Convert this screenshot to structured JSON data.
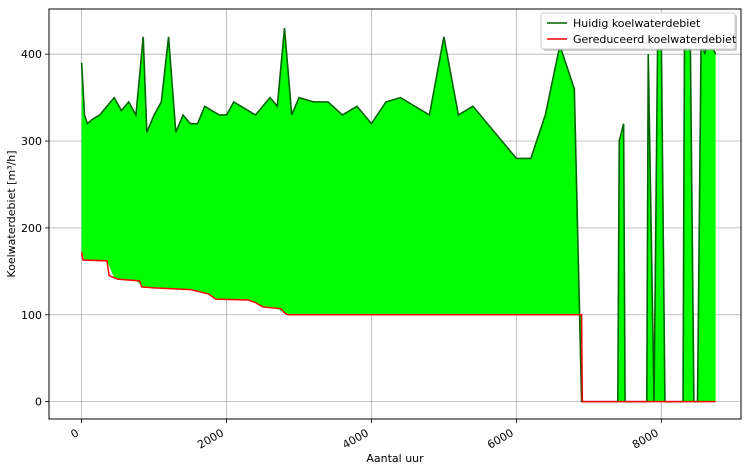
{
  "chart_data": {
    "type": "line",
    "title": "",
    "xlabel": "Aantal uur",
    "ylabel": "Koelwaterdebiet [m³/h]",
    "xlim": [
      -450,
      9100
    ],
    "ylim": [
      -20,
      452
    ],
    "xticks": [
      0,
      2000,
      4000,
      6000,
      8000
    ],
    "yticks": [
      0,
      100,
      200,
      300,
      400
    ],
    "grid": true,
    "legend_position": "top-right",
    "fill_between_color": "#00ff00",
    "series": [
      {
        "name": "Huidig koelwaterdebiet",
        "color": "#006400",
        "x": [
          0,
          40,
          80,
          150,
          250,
          350,
          450,
          550,
          650,
          750,
          850,
          900,
          1000,
          1100,
          1200,
          1300,
          1400,
          1500,
          1600,
          1700,
          1800,
          1900,
          2000,
          2100,
          2200,
          2300,
          2400,
          2500,
          2600,
          2700,
          2800,
          2900,
          3000,
          3200,
          3400,
          3600,
          3800,
          4000,
          4200,
          4400,
          4600,
          4800,
          5000,
          5200,
          5400,
          5600,
          5800,
          6000,
          6200,
          6400,
          6600,
          6800,
          6900,
          6920,
          7400,
          7420,
          7480,
          7500,
          7800,
          7820,
          7900,
          7950,
          8000,
          8050,
          8300,
          8320,
          8400,
          8450,
          8500,
          8550,
          8600,
          8650,
          8750
        ],
        "y": [
          390,
          330,
          320,
          325,
          330,
          340,
          350,
          335,
          345,
          330,
          420,
          310,
          330,
          345,
          420,
          310,
          330,
          320,
          320,
          340,
          335,
          330,
          330,
          345,
          340,
          335,
          330,
          340,
          350,
          340,
          430,
          330,
          350,
          345,
          345,
          330,
          340,
          320,
          345,
          350,
          340,
          330,
          420,
          330,
          340,
          320,
          300,
          280,
          280,
          330,
          410,
          360,
          0,
          0,
          0,
          300,
          320,
          0,
          0,
          400,
          0,
          420,
          420,
          0,
          0,
          420,
          420,
          0,
          0,
          420,
          400,
          420,
          400
        ]
      },
      {
        "name": "Gereduceerd koelwaterdebiet",
        "color": "#ff0000",
        "x": [
          0,
          20,
          350,
          380,
          500,
          800,
          830,
          1000,
          1500,
          1600,
          1750,
          1850,
          2300,
          2400,
          2500,
          2750,
          2800,
          2850,
          6900,
          6910,
          8750
        ],
        "y": [
          172,
          163,
          162,
          145,
          141,
          139,
          132,
          131,
          129,
          127,
          124,
          118,
          117,
          114,
          109,
          107,
          102,
          100,
          100,
          0,
          0
        ]
      }
    ]
  }
}
